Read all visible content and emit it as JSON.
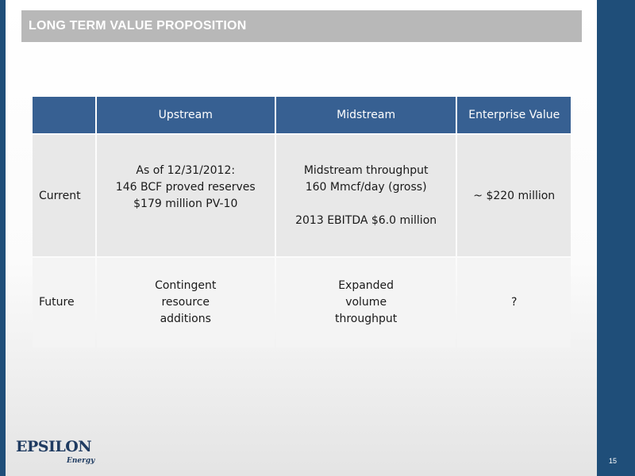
{
  "title": "LONG TERM VALUE PROPOSITION",
  "table": {
    "headers": [
      "",
      "Upstream",
      "Midstream",
      "Enterprise Value"
    ],
    "rows": [
      {
        "label": "Current",
        "upstream": [
          "As of 12/31/2012:",
          "146 BCF proved reserves",
          "$179 million PV-10"
        ],
        "midstream": [
          "Midstream throughput",
          "160 Mmcf/day (gross)",
          "",
          "2013 EBITDA $6.0 million"
        ],
        "enterprise_value": "~  $220 million"
      },
      {
        "label": "Future",
        "upstream": [
          "Contingent",
          "resource",
          "additions"
        ],
        "midstream": [
          "Expanded",
          "volume",
          "throughput"
        ],
        "enterprise_value": "?"
      }
    ]
  },
  "logo": {
    "name": "EPSILON",
    "sub": "Energy"
  },
  "page_number": "15",
  "colors": {
    "header_blue": "#376092",
    "side_bar": "#1f4e79",
    "title_bar": "#b8b8b8"
  }
}
